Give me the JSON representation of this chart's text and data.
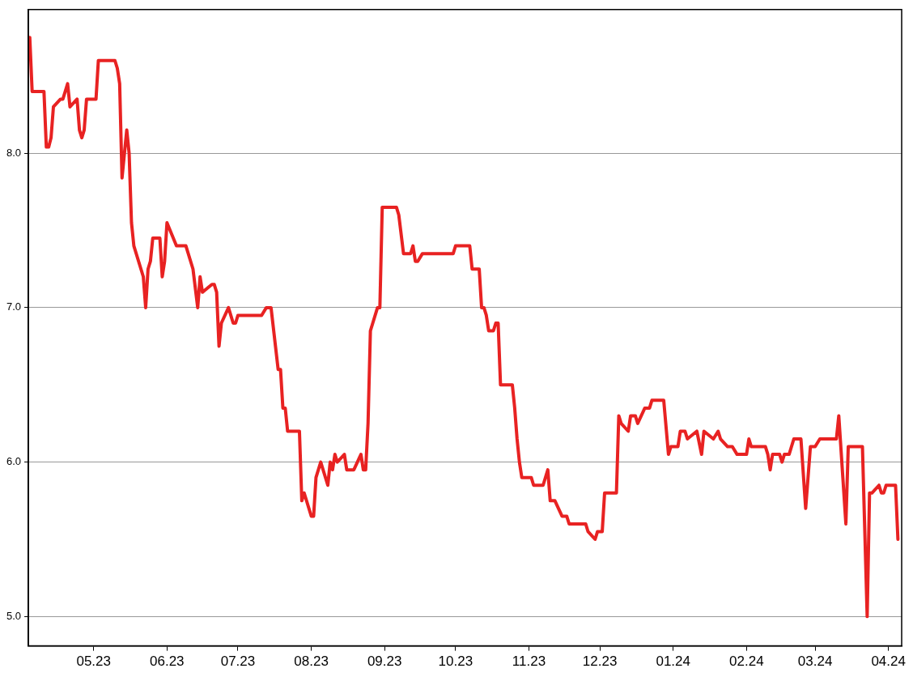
{
  "chart_data": {
    "type": "line",
    "x": [
      "2023-04-04",
      "2023-04-05",
      "2023-04-10",
      "2023-04-11",
      "2023-04-12",
      "2023-04-13",
      "2023-04-14",
      "2023-04-17",
      "2023-04-18",
      "2023-04-20",
      "2023-04-21",
      "2023-04-24",
      "2023-04-25",
      "2023-04-26",
      "2023-04-27",
      "2023-04-28",
      "2023-05-02",
      "2023-05-03",
      "2023-05-10",
      "2023-05-11",
      "2023-05-12",
      "2023-05-13",
      "2023-05-15",
      "2023-05-16",
      "2023-05-17",
      "2023-05-18",
      "2023-05-22",
      "2023-05-23",
      "2023-05-24",
      "2023-05-25",
      "2023-05-26",
      "2023-05-29",
      "2023-05-30",
      "2023-05-31",
      "2023-06-01",
      "2023-06-05",
      "2023-06-09",
      "2023-06-12",
      "2023-06-14",
      "2023-06-15",
      "2023-06-16",
      "2023-06-20",
      "2023-06-21",
      "2023-06-22",
      "2023-06-23",
      "2023-06-24",
      "2023-06-27",
      "2023-06-29",
      "2023-06-30",
      "2023-07-01",
      "2023-07-11",
      "2023-07-13",
      "2023-07-15",
      "2023-07-18",
      "2023-07-19",
      "2023-07-20",
      "2023-07-21",
      "2023-07-22",
      "2023-07-27",
      "2023-07-28",
      "2023-07-29",
      "2023-08-01",
      "2023-08-02",
      "2023-08-03",
      "2023-08-05",
      "2023-08-08",
      "2023-08-09",
      "2023-08-10",
      "2023-08-11",
      "2023-08-12",
      "2023-08-15",
      "2023-08-16",
      "2023-08-19",
      "2023-08-22",
      "2023-08-23",
      "2023-08-24",
      "2023-08-25",
      "2023-08-26",
      "2023-08-29",
      "2023-08-30",
      "2023-08-31",
      "2023-09-06",
      "2023-09-07",
      "2023-09-09",
      "2023-09-12",
      "2023-09-13",
      "2023-09-14",
      "2023-09-15",
      "2023-09-17",
      "2023-09-30",
      "2023-10-01",
      "2023-10-07",
      "2023-10-08",
      "2023-10-11",
      "2023-10-12",
      "2023-10-13",
      "2023-10-14",
      "2023-10-15",
      "2023-10-17",
      "2023-10-18",
      "2023-10-19",
      "2023-10-20",
      "2023-10-25",
      "2023-10-26",
      "2023-10-27",
      "2023-10-28",
      "2023-10-29",
      "2023-11-02",
      "2023-11-03",
      "2023-11-07",
      "2023-11-09",
      "2023-11-10",
      "2023-11-12",
      "2023-11-15",
      "2023-11-17",
      "2023-11-18",
      "2023-11-25",
      "2023-11-26",
      "2023-11-29",
      "2023-11-30",
      "2023-12-02",
      "2023-12-03",
      "2023-12-08",
      "2023-12-09",
      "2023-12-10",
      "2023-12-13",
      "2023-12-14",
      "2023-12-16",
      "2023-12-17",
      "2023-12-20",
      "2023-12-22",
      "2023-12-23",
      "2023-12-28",
      "2023-12-30",
      "2023-12-31",
      "2024-01-03",
      "2024-01-04",
      "2024-01-06",
      "2024-01-07",
      "2024-01-11",
      "2024-01-13",
      "2024-01-14",
      "2024-01-18",
      "2024-01-20",
      "2024-01-21",
      "2024-01-24",
      "2024-01-26",
      "2024-01-28",
      "2024-02-01",
      "2024-02-02",
      "2024-02-03",
      "2024-02-09",
      "2024-02-10",
      "2024-02-11",
      "2024-02-12",
      "2024-02-15",
      "2024-02-16",
      "2024-02-17",
      "2024-02-19",
      "2024-02-21",
      "2024-02-24",
      "2024-02-26",
      "2024-02-28",
      "2024-03-01",
      "2024-03-03",
      "2024-03-10",
      "2024-03-11",
      "2024-03-14",
      "2024-03-15",
      "2024-03-21",
      "2024-03-23",
      "2024-03-24",
      "2024-03-25",
      "2024-03-28",
      "2024-03-29",
      "2024-03-30",
      "2024-03-31",
      "2024-04-04",
      "2024-04-05"
    ],
    "values": [
      8.75,
      8.4,
      8.4,
      8.04,
      8.04,
      8.1,
      8.3,
      8.35,
      8.35,
      8.45,
      8.3,
      8.35,
      8.15,
      8.1,
      8.15,
      8.35,
      8.35,
      8.6,
      8.6,
      8.55,
      8.45,
      7.84,
      8.15,
      8.0,
      7.55,
      7.4,
      7.2,
      7.0,
      7.25,
      7.3,
      7.45,
      7.45,
      7.2,
      7.3,
      7.55,
      7.4,
      7.4,
      7.25,
      7.0,
      7.2,
      7.1,
      7.15,
      7.15,
      7.1,
      6.75,
      6.9,
      7.0,
      6.9,
      6.9,
      6.95,
      6.95,
      7.0,
      7.0,
      6.6,
      6.6,
      6.35,
      6.35,
      6.2,
      6.2,
      5.75,
      5.8,
      5.65,
      5.65,
      5.9,
      6.0,
      5.85,
      6.0,
      5.95,
      6.05,
      6.0,
      6.05,
      5.95,
      5.95,
      6.05,
      5.95,
      5.95,
      6.25,
      6.85,
      7.0,
      7.0,
      7.65,
      7.65,
      7.6,
      7.35,
      7.35,
      7.4,
      7.3,
      7.3,
      7.35,
      7.35,
      7.4,
      7.4,
      7.25,
      7.25,
      7.0,
      7.0,
      6.95,
      6.85,
      6.85,
      6.9,
      6.9,
      6.5,
      6.5,
      6.35,
      6.15,
      6.0,
      5.9,
      5.9,
      5.85,
      5.85,
      5.95,
      5.75,
      5.75,
      5.65,
      5.65,
      5.6,
      5.6,
      5.55,
      5.5,
      5.55,
      5.55,
      5.8,
      5.8,
      6.3,
      6.25,
      6.2,
      6.3,
      6.3,
      6.25,
      6.35,
      6.35,
      6.4,
      6.4,
      6.05,
      6.1,
      6.1,
      6.2,
      6.2,
      6.15,
      6.2,
      6.05,
      6.2,
      6.15,
      6.2,
      6.15,
      6.1,
      6.1,
      6.05,
      6.05,
      6.15,
      6.1,
      6.1,
      6.05,
      5.95,
      6.05,
      6.05,
      6.0,
      6.05,
      6.05,
      6.15,
      6.15,
      5.7,
      6.1,
      6.1,
      6.15,
      6.15,
      6.3,
      5.6,
      6.1,
      6.1,
      5.0,
      5.8,
      5.8,
      5.85,
      5.8,
      5.8,
      5.85,
      5.85,
      5.5
    ],
    "color": "#e82222",
    "marker": "none",
    "xlim": [
      "2023-04-03T10:00",
      "2024-04-06T14:00"
    ],
    "xticks": [
      {
        "value": "2023-05-01",
        "label": "05.23"
      },
      {
        "value": "2023-06-01",
        "label": "06.23"
      },
      {
        "value": "2023-07-01",
        "label": "07.23"
      },
      {
        "value": "2023-08-01",
        "label": "08.23"
      },
      {
        "value": "2023-09-01",
        "label": "09.23"
      },
      {
        "value": "2023-10-01",
        "label": "10.23"
      },
      {
        "value": "2023-11-01",
        "label": "11.23"
      },
      {
        "value": "2023-12-01",
        "label": "12.23"
      },
      {
        "value": "2024-01-01",
        "label": "01.24"
      },
      {
        "value": "2024-02-01",
        "label": "02.24"
      },
      {
        "value": "2024-03-01",
        "label": "03.24"
      },
      {
        "value": "2024-04-01",
        "label": "04.24"
      }
    ],
    "ylim": [
      4.81,
      8.93
    ],
    "yticks": [
      {
        "value": 5,
        "label": "5.0"
      },
      {
        "value": 6,
        "label": "6.0"
      },
      {
        "value": 7,
        "label": "7.0"
      },
      {
        "value": 8,
        "label": "8.0"
      }
    ],
    "grid": "y"
  }
}
